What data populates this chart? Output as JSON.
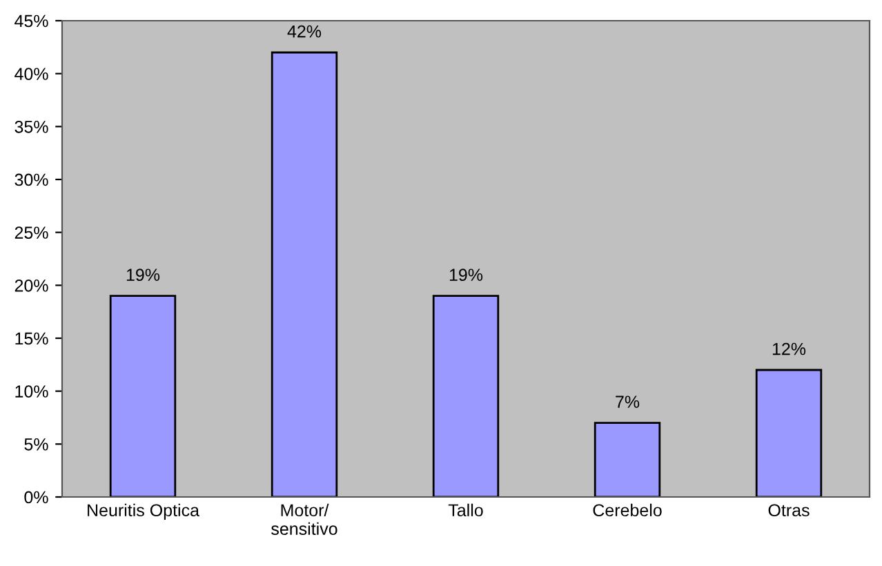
{
  "chart_data": {
    "type": "bar",
    "categories": [
      "Neuritis Optica",
      "Motor/\nsensitivo",
      "Tallo",
      "Cerebelo",
      "Otras"
    ],
    "values": [
      19,
      42,
      19,
      7,
      12
    ],
    "value_labels": [
      "19%",
      "42%",
      "19%",
      "7%",
      "12%"
    ],
    "color": "#9999ff",
    "ylim": [
      0,
      45
    ],
    "yticks": [
      {
        "value": 0,
        "label": "0%"
      },
      {
        "value": 5,
        "label": "5%"
      },
      {
        "value": 10,
        "label": "10%"
      },
      {
        "value": 15,
        "label": "15%"
      },
      {
        "value": 20,
        "label": "20%"
      },
      {
        "value": 25,
        "label": "25%"
      },
      {
        "value": 30,
        "label": "30%"
      },
      {
        "value": 35,
        "label": "35%"
      },
      {
        "value": 40,
        "label": "40%"
      },
      {
        "value": 45,
        "label": "45%"
      }
    ],
    "grid": false
  }
}
